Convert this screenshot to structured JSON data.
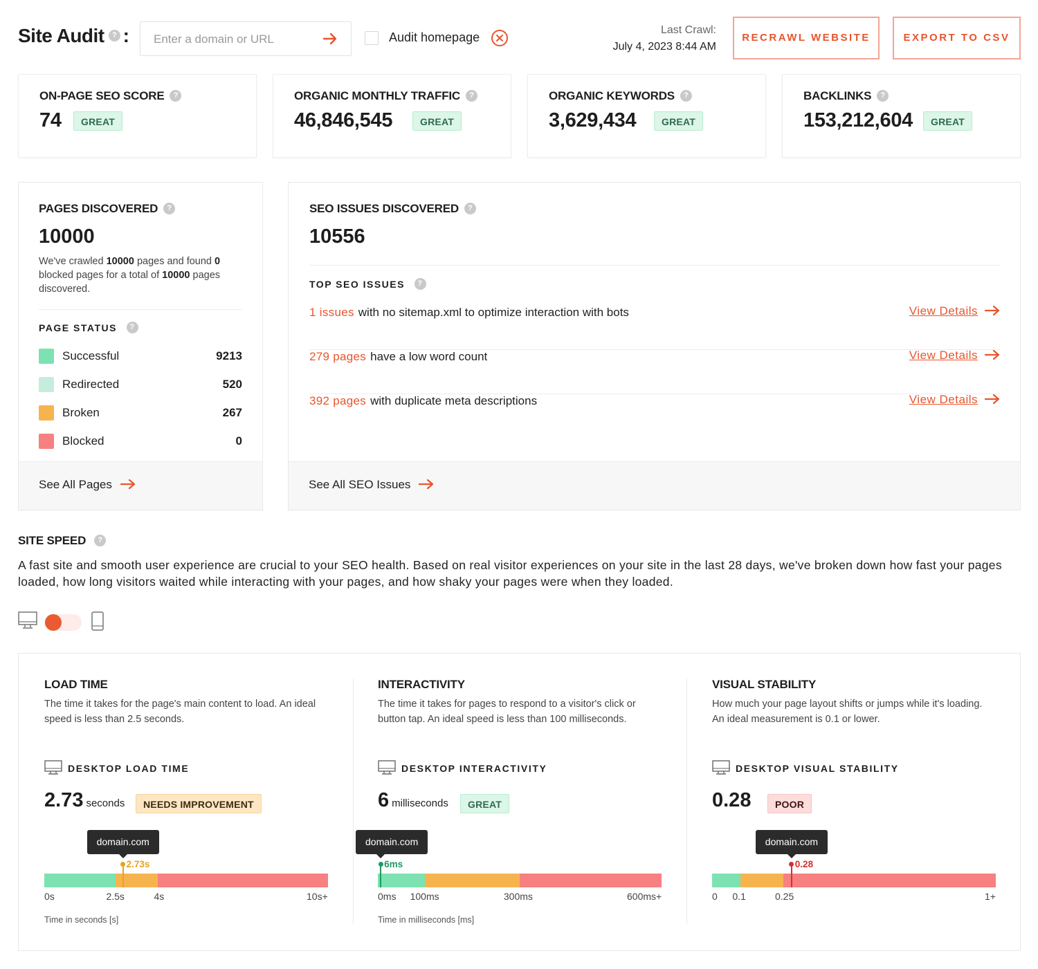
{
  "colors": {
    "accent": "#e8552d",
    "green": "#7de2b2",
    "light_green": "#c4eedb",
    "orange": "#f6b44f",
    "red": "#f78080",
    "tooltip_bg": "#2b2b2b"
  },
  "header": {
    "title": "Site Audit",
    "help_icon": "help-icon",
    "colon": ":",
    "search_placeholder": "Enter a domain or URL",
    "go_icon": "arrow-right-icon",
    "audit_homepage_label": "Audit homepage",
    "audit_homepage_checked": false,
    "clear_icon": "close-circle-icon",
    "last_crawl_label": "Last Crawl:",
    "last_crawl_value": "July 4, 2023 8:44 AM",
    "recrawl_label": "RECRAWL WEBSITE",
    "export_label": "EXPORT TO CSV"
  },
  "metrics": [
    {
      "title": "ON-PAGE SEO SCORE",
      "value": "74",
      "badge": "GREAT"
    },
    {
      "title": "ORGANIC MONTHLY TRAFFIC",
      "value": "46,846,545",
      "badge": "GREAT"
    },
    {
      "title": "ORGANIC KEYWORDS",
      "value": "3,629,434",
      "badge": "GREAT"
    },
    {
      "title": "BACKLINKS",
      "value": "153,212,604",
      "badge": "GREAT"
    }
  ],
  "pages": {
    "title": "PAGES DISCOVERED",
    "value": "10000",
    "desc_1": "We've crawled ",
    "desc_crawled": "10000",
    "desc_2": " pages and found ",
    "desc_blocked": "0",
    "desc_3": " blocked pages for a total of ",
    "desc_total": "10000",
    "desc_4": " pages discovered.",
    "status_label": "PAGE STATUS",
    "statuses": [
      {
        "label": "Successful",
        "value": "9213",
        "color": "#7de2b2"
      },
      {
        "label": "Redirected",
        "value": "520",
        "color": "#c4eedb"
      },
      {
        "label": "Broken",
        "value": "267",
        "color": "#f6b44f"
      },
      {
        "label": "Blocked",
        "value": "0",
        "color": "#f78080"
      }
    ],
    "footer_link": "See All Pages"
  },
  "seo": {
    "title": "SEO ISSUES DISCOVERED",
    "value": "10556",
    "top_label": "TOP SEO ISSUES",
    "issues": [
      {
        "count": "1 issues",
        "text": "with no sitemap.xml to optimize interaction with bots",
        "link": "View Details"
      },
      {
        "count": "279 pages",
        "text": "have a low word count",
        "link": "View Details"
      },
      {
        "count": "392 pages",
        "text": "with duplicate meta descriptions",
        "link": "View Details"
      }
    ],
    "footer_link": "See All SEO Issues"
  },
  "site_speed": {
    "title": "SITE SPEED",
    "desc": "A fast site and smooth user experience are crucial to your SEO health. Based on real visitor experiences on your site in the last 28 days, we've broken down how fast your pages loaded, how long visitors waited while interacting with your pages, and how shaky your pages were when they loaded.",
    "device_toggle": "desktop",
    "desktop_icon": "desktop-icon",
    "mobile_icon": "mobile-icon",
    "columns": [
      {
        "title": "LOAD TIME",
        "desc": "The time it takes for the page's main content to load. An ideal speed is less than 2.5 seconds.",
        "metric_label": "DESKTOP LOAD TIME",
        "value": "2.73",
        "unit": "seconds",
        "badge": "NEEDS IMPROVEMENT",
        "badge_type": "needs",
        "tooltip": "domain.com",
        "pin_label": "2.73s",
        "pin_color": "#e8a21d",
        "pin_fraction": 0.277,
        "segments": [
          0.25,
          0.15,
          0.6
        ],
        "ticks": [
          {
            "label": "0s",
            "fraction": 0
          },
          {
            "label": "2.5s",
            "fraction": 0.245
          },
          {
            "label": "4s",
            "fraction": 0.4
          },
          {
            "label": "10s+",
            "fraction": 1
          }
        ],
        "axis_note": "Time in seconds [s]"
      },
      {
        "title": "INTERACTIVITY",
        "desc": "The time it takes for pages to respond to a visitor's click or button tap. An ideal speed is less than 100 milliseconds.",
        "metric_label": "DESKTOP INTERACTIVITY",
        "value": "6",
        "unit": "milliseconds",
        "badge": "GREAT",
        "badge_type": "great",
        "tooltip": "domain.com",
        "pin_label": "6ms",
        "pin_color": "#1f9a62",
        "pin_fraction": 0.01,
        "segments": [
          0.1667,
          0.3333,
          0.5
        ],
        "ticks": [
          {
            "label": "0ms",
            "fraction": 0
          },
          {
            "label": "100ms",
            "fraction": 0.16
          },
          {
            "label": "300ms",
            "fraction": 0.49
          },
          {
            "label": "600ms+",
            "fraction": 1
          }
        ],
        "axis_note": "Time in milliseconds [ms]"
      },
      {
        "title": "VISUAL STABILITY",
        "desc": "How much your page layout shifts or jumps while it's loading. An ideal measurement is 0.1 or lower.",
        "metric_label": "DESKTOP VISUAL STABILITY",
        "value": "0.28",
        "unit": "",
        "badge": "POOR",
        "badge_type": "poor",
        "tooltip": "domain.com",
        "pin_label": "0.28",
        "pin_color": "#d62f2f",
        "pin_fraction": 0.28,
        "segments": [
          0.1,
          0.15,
          0.75
        ],
        "ticks": [
          {
            "label": "0",
            "fraction": 0
          },
          {
            "label": "0.1",
            "fraction": 0.09
          },
          {
            "label": "0.25",
            "fraction": 0.25
          },
          {
            "label": "1+",
            "fraction": 1
          }
        ],
        "axis_note": ""
      }
    ]
  }
}
